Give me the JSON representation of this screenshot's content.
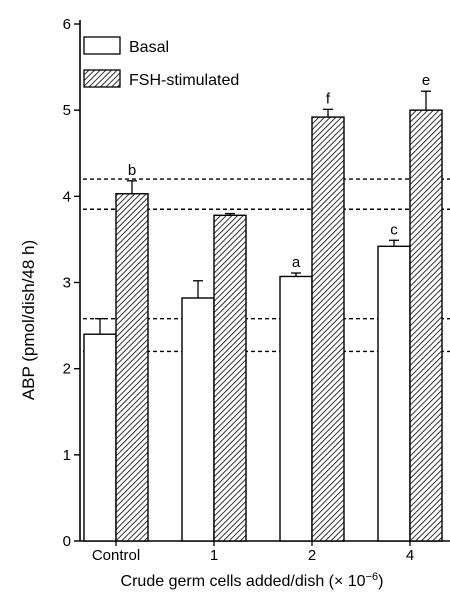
{
  "chart_data": {
    "type": "bar",
    "categories": [
      "Control",
      "1",
      "2",
      "4"
    ],
    "series": [
      {
        "name": "Basal",
        "values": [
          2.4,
          2.82,
          3.07,
          3.42
        ],
        "errors": [
          0.18,
          0.2,
          0.04,
          0.07
        ],
        "labels": [
          "",
          "",
          "a",
          "c"
        ],
        "fill": "#ffffff"
      },
      {
        "name": "FSH-stimulated",
        "values": [
          4.03,
          3.78,
          4.92,
          5.0
        ],
        "errors": [
          0.15,
          0.02,
          0.09,
          0.22
        ],
        "labels": [
          "b",
          "",
          "f",
          "e"
        ],
        "fill": "hatch"
      }
    ],
    "reference_lines": [
      4.2,
      3.85,
      2.58,
      2.2
    ],
    "ylabel": "ABP (pmol/dish/48 h)",
    "xlabel": "Crude germ cells added/dish (× 10",
    "xlabel_exponent": "−6",
    "xlabel_close": ")",
    "yticks": [
      "0",
      "1",
      "2",
      "3",
      "4",
      "5",
      "6"
    ],
    "ylim": [
      0,
      6
    ],
    "legend_position": "top-left",
    "grid": false
  }
}
